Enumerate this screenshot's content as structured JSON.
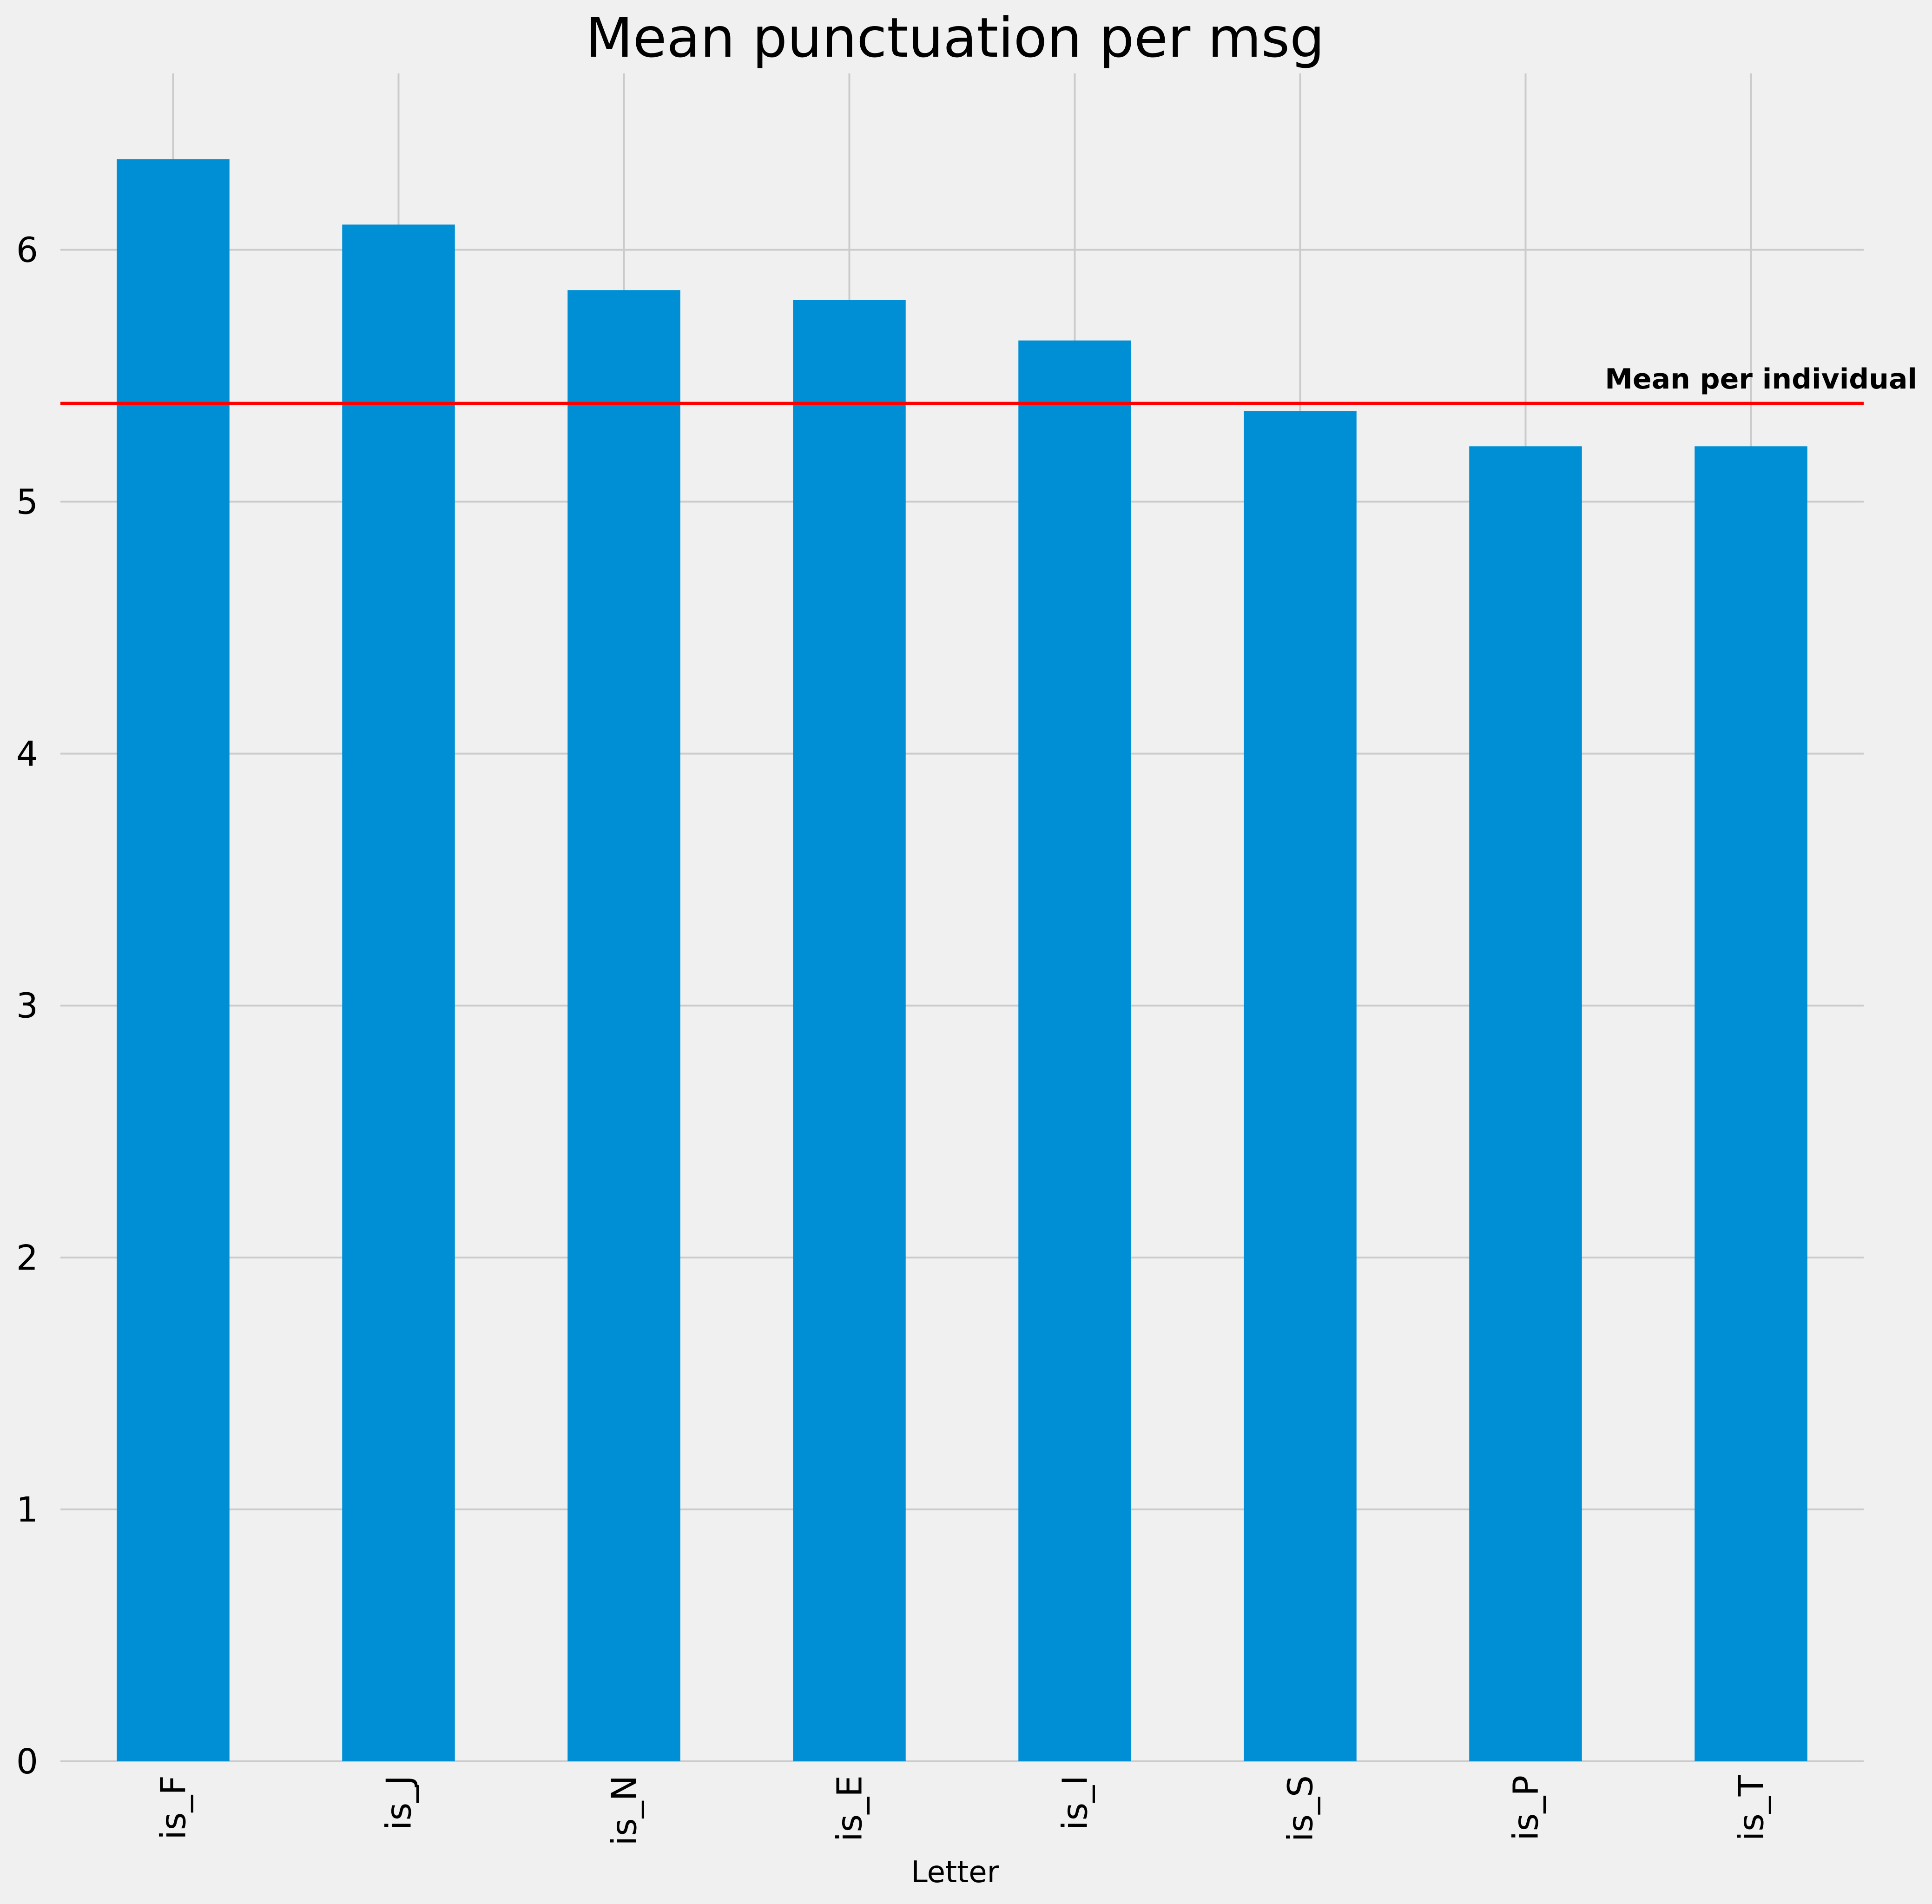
{
  "chart_data": {
    "type": "bar",
    "title": "Mean punctuation per msg",
    "xlabel": "Letter",
    "ylabel": "",
    "categories": [
      "is_F",
      "is_J",
      "is_N",
      "is_E",
      "is_I",
      "is_S",
      "is_P",
      "is_T"
    ],
    "values": [
      6.36,
      6.1,
      5.84,
      5.8,
      5.64,
      5.36,
      5.22,
      5.22
    ],
    "ylim": [
      0,
      6.7
    ],
    "yticks": [
      0,
      1,
      2,
      3,
      4,
      5,
      6
    ],
    "grid": true,
    "bar_color": "#008fd5",
    "reference_line": {
      "value": 5.39,
      "label": "Mean per individual",
      "color": "#ff0000"
    }
  }
}
